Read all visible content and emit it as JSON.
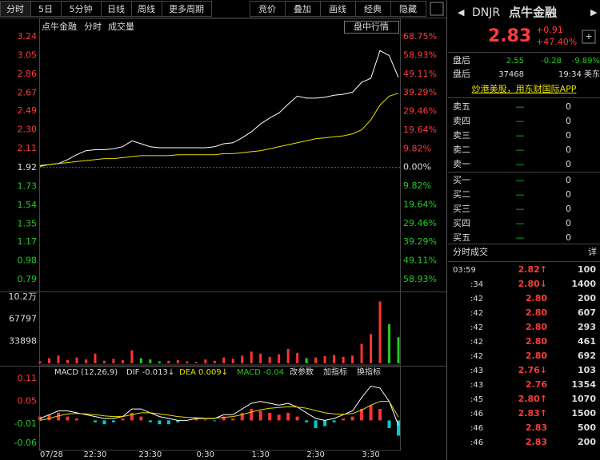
{
  "toolbar": {
    "tabs": [
      "分时",
      "5日",
      "5分钟",
      "日线",
      "周线",
      "更多周期"
    ],
    "tools": [
      "竞价",
      "叠加",
      "画线",
      "经典",
      "隐藏"
    ]
  },
  "chart_data": [
    {
      "type": "line",
      "labels": [
        "点牛金融",
        "分时",
        "成交量"
      ],
      "button": "盘中行情",
      "x": [
        0,
        10,
        20,
        30,
        40,
        50,
        60,
        70,
        80,
        90,
        100,
        110,
        120,
        130,
        140,
        150,
        160,
        170,
        180,
        190,
        200,
        210,
        220,
        230,
        240,
        250,
        260,
        270,
        280,
        290,
        300,
        310,
        320,
        330,
        340,
        350,
        360,
        370,
        380,
        390
      ],
      "xlim": [
        0,
        390
      ],
      "series": [
        {
          "color": "#ffffff",
          "values": [
            1.94,
            1.95,
            1.96,
            2.0,
            2.05,
            2.09,
            2.1,
            2.1,
            2.11,
            2.13,
            2.19,
            2.16,
            2.13,
            2.12,
            2.12,
            2.12,
            2.12,
            2.12,
            2.12,
            2.13,
            2.16,
            2.17,
            2.22,
            2.28,
            2.36,
            2.42,
            2.47,
            2.56,
            2.64,
            2.62,
            2.62,
            2.63,
            2.65,
            2.66,
            2.68,
            2.78,
            2.82,
            3.1,
            3.05,
            2.83
          ]
        },
        {
          "color": "#e8e000",
          "values": [
            1.93,
            1.95,
            1.96,
            1.97,
            1.98,
            1.99,
            2.0,
            2.01,
            2.01,
            2.02,
            2.03,
            2.04,
            2.04,
            2.04,
            2.04,
            2.05,
            2.05,
            2.05,
            2.05,
            2.05,
            2.06,
            2.06,
            2.07,
            2.08,
            2.09,
            2.11,
            2.13,
            2.15,
            2.17,
            2.19,
            2.21,
            2.22,
            2.23,
            2.24,
            2.26,
            2.3,
            2.4,
            2.55,
            2.64,
            2.67
          ]
        }
      ],
      "ylim": [
        0.79,
        3.24
      ],
      "yticks": [
        3.24,
        3.05,
        2.86,
        2.67,
        2.49,
        {
          "value": 2.3,
          "label": "2.30"
        },
        2.11,
        1.92,
        1.73,
        1.54,
        1.35,
        1.17,
        0.98,
        0.79
      ],
      "y2lim": [
        -58.93,
        68.75
      ],
      "y2ticks": [
        {
          "value": 68.75,
          "label": "68.75%"
        },
        {
          "value": 58.93,
          "label": "58.93%"
        },
        {
          "value": 49.11,
          "label": "49.11%"
        },
        {
          "value": 39.29,
          "label": "39.29%"
        },
        {
          "value": 29.46,
          "label": "29.46%"
        },
        {
          "value": 19.64,
          "label": "19.64%"
        },
        {
          "value": 9.82,
          "label": "9.82%"
        },
        {
          "value": 0,
          "label": "0.00%"
        },
        {
          "value": -9.82,
          "label": "9.82%"
        },
        {
          "value": -19.64,
          "label": "19.64%"
        },
        {
          "value": -29.46,
          "label": "29.46%"
        },
        {
          "value": -39.29,
          "label": "39.29%"
        },
        {
          "value": -49.11,
          "label": "49.11%"
        },
        {
          "value": -58.93,
          "label": "58.93%"
        }
      ]
    },
    {
      "type": "bar",
      "x": [
        0,
        10,
        20,
        30,
        40,
        50,
        60,
        70,
        80,
        90,
        100,
        110,
        120,
        130,
        140,
        150,
        160,
        170,
        180,
        190,
        200,
        210,
        220,
        230,
        240,
        250,
        260,
        270,
        280,
        290,
        300,
        310,
        320,
        330,
        340,
        350,
        360,
        370,
        380,
        390
      ],
      "xlim": [
        0,
        390
      ],
      "values": [
        3000,
        8000,
        12000,
        5000,
        9000,
        6000,
        15000,
        4000,
        7000,
        5000,
        20000,
        8000,
        6000,
        3000,
        4000,
        5000,
        3000,
        2000,
        6000,
        4000,
        9000,
        7000,
        12000,
        18000,
        15000,
        10000,
        14000,
        22000,
        16000,
        8000,
        9000,
        11000,
        13000,
        10000,
        12000,
        30000,
        45000,
        95000,
        60000,
        40000
      ],
      "ylim": [
        0,
        101695
      ],
      "yticks": [
        {
          "value": 101695,
          "label": "10.2万"
        },
        67797,
        33898
      ],
      "colors": {
        "up": "#ff3333",
        "down": "#22cc22"
      }
    },
    {
      "type": "macd",
      "labels": [
        "MACD (12,26,9)",
        "DIF -0.013↓",
        "DEA 0.009↓",
        "MACD -0.04"
      ],
      "buttons": [
        "改参数",
        "加指标",
        "换指标"
      ],
      "x": [
        0,
        10,
        20,
        30,
        40,
        50,
        60,
        70,
        80,
        90,
        100,
        110,
        120,
        130,
        140,
        150,
        160,
        170,
        180,
        190,
        200,
        210,
        220,
        230,
        240,
        250,
        260,
        270,
        280,
        290,
        300,
        310,
        320,
        330,
        340,
        350,
        360,
        370,
        380,
        390
      ],
      "xlim": [
        0,
        390
      ],
      "xticks": [
        {
          "value": 0,
          "label": "07/28"
        },
        {
          "value": 60,
          "label": "22:30"
        },
        {
          "value": 120,
          "label": "23:30"
        },
        {
          "value": 180,
          "label": "0:30"
        },
        {
          "value": 240,
          "label": "1:30"
        },
        {
          "value": 300,
          "label": "2:30"
        },
        {
          "value": 360,
          "label": "3:30"
        }
      ],
      "ylim": [
        -0.06,
        0.11
      ],
      "yticks": [
        0.11,
        0.05,
        -0.01,
        -0.06
      ],
      "series": [
        {
          "color": "#ffffff",
          "values": [
            0.005,
            0.015,
            0.025,
            0.025,
            0.02,
            0.015,
            0.01,
            0.005,
            0.005,
            0.01,
            0.03,
            0.03,
            0.02,
            0.01,
            0.005,
            0,
            0,
            0.005,
            0.005,
            0.005,
            0.015,
            0.015,
            0.03,
            0.045,
            0.05,
            0.045,
            0.04,
            0.045,
            0.035,
            0.02,
            0.005,
            0,
            0.005,
            0.015,
            0.025,
            0.06,
            0.09,
            0.085,
            0.05,
            -0.013
          ]
        },
        {
          "color": "#e8e000",
          "values": [
            0,
            0.005,
            0.012,
            0.017,
            0.018,
            0.017,
            0.015,
            0.012,
            0.01,
            0.01,
            0.015,
            0.02,
            0.02,
            0.017,
            0.014,
            0.01,
            0.008,
            0.007,
            0.006,
            0.006,
            0.008,
            0.01,
            0.015,
            0.022,
            0.028,
            0.032,
            0.034,
            0.036,
            0.035,
            0.032,
            0.026,
            0.02,
            0.017,
            0.016,
            0.018,
            0.027,
            0.04,
            0.05,
            0.05,
            0.009
          ]
        },
        {
          "color": "#ff3333",
          "values": [
            0.01,
            0.015,
            0.02,
            0.01,
            0.005,
            0,
            -0.005,
            -0.01,
            -0.005,
            0.005,
            0.02,
            0.01,
            -0.005,
            -0.01,
            -0.01,
            -0.005,
            0,
            0.005,
            0.002,
            -0.002,
            0.01,
            0.005,
            0.02,
            0.03,
            0.025,
            0.02,
            0.015,
            0.02,
            0.01,
            -0.005,
            -0.02,
            -0.015,
            -0.005,
            0.005,
            0.01,
            0.03,
            0.04,
            0.03,
            -0.02,
            -0.04
          ]
        }
      ],
      "colors": {
        "up": "#ff3333",
        "down": "#00cccc"
      }
    }
  ],
  "quote": {
    "symbol": "DNJR",
    "name": "点牛金融",
    "price": "2.83",
    "change": "+0.91",
    "change_pct": "+47.40%",
    "after_hours": {
      "label": "盘后",
      "price": "2.55",
      "change": "-0.28",
      "change_pct": "-9.89%",
      "volume_label": "盘后",
      "volume": 37468,
      "time": "19:34 美东"
    },
    "banner": "炒港美股，用东财国际APP"
  },
  "order_book": {
    "asks": [
      {
        "label": "卖五",
        "price": "—",
        "volume": 0
      },
      {
        "label": "卖四",
        "price": "—",
        "volume": 0
      },
      {
        "label": "卖三",
        "price": "—",
        "volume": 0
      },
      {
        "label": "卖二",
        "price": "—",
        "volume": 0
      },
      {
        "label": "卖一",
        "price": "—",
        "volume": 0
      }
    ],
    "bids": [
      {
        "label": "买一",
        "price": "—",
        "volume": 0
      },
      {
        "label": "买二",
        "price": "—",
        "volume": 0
      },
      {
        "label": "买三",
        "price": "—",
        "volume": 0
      },
      {
        "label": "买四",
        "price": "—",
        "volume": 0
      },
      {
        "label": "买五",
        "price": "—",
        "volume": 0
      }
    ]
  },
  "trades": {
    "title": "分时成交",
    "detail": "详",
    "rows": [
      [
        "03:59",
        "2.82↑",
        100
      ],
      [
        ":34",
        "2.80↓",
        1400
      ],
      [
        ":42",
        "2.80",
        200
      ],
      [
        ":42",
        "2.80",
        607
      ],
      [
        ":42",
        "2.80",
        293
      ],
      [
        ":42",
        "2.80",
        461
      ],
      [
        ":42",
        "2.80",
        692
      ],
      [
        ":43",
        "2.76↓",
        103
      ],
      [
        ":43",
        "2.76",
        1354
      ],
      [
        ":45",
        "2.80↑",
        1070
      ],
      [
        ":46",
        "2.83↑",
        1500
      ],
      [
        ":46",
        "2.83",
        500
      ],
      [
        ":46",
        "2.83",
        200
      ]
    ]
  }
}
